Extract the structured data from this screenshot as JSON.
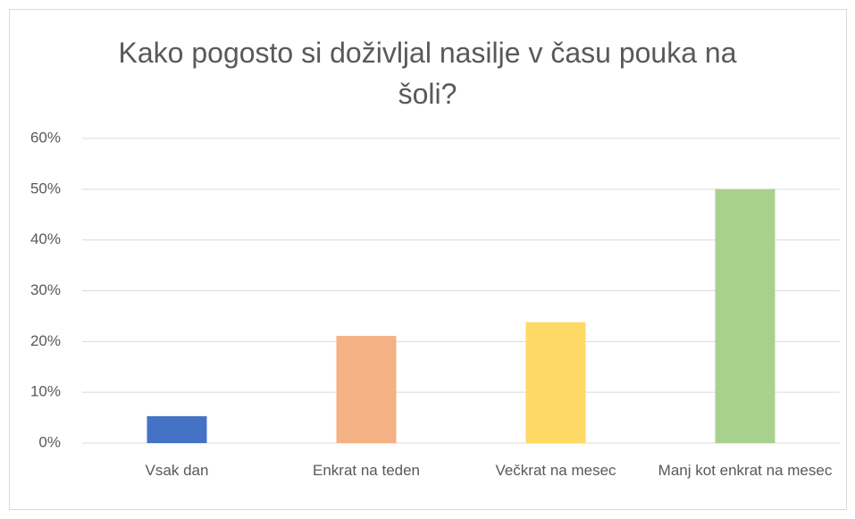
{
  "chart_data": {
    "type": "bar",
    "title": "Kako pogosto si doživljal nasilje v času pouka na šoli?",
    "categories": [
      "Vsak dan",
      "Enkrat na teden",
      "Večkrat na mesec",
      "Manj kot enkrat na mesec"
    ],
    "values": [
      5.3,
      21.1,
      23.8,
      50
    ],
    "colors": [
      "#4472c4",
      "#f4b183",
      "#ffd966",
      "#a9d18e"
    ],
    "ylim": [
      0,
      60
    ],
    "yticks": [
      {
        "value": 0,
        "label": "0%"
      },
      {
        "value": 10,
        "label": "10%"
      },
      {
        "value": 20,
        "label": "20%"
      },
      {
        "value": 30,
        "label": "30%"
      },
      {
        "value": 40,
        "label": "40%"
      },
      {
        "value": 50,
        "label": "50%"
      },
      {
        "value": 60,
        "label": "60%"
      }
    ],
    "grid": true
  }
}
